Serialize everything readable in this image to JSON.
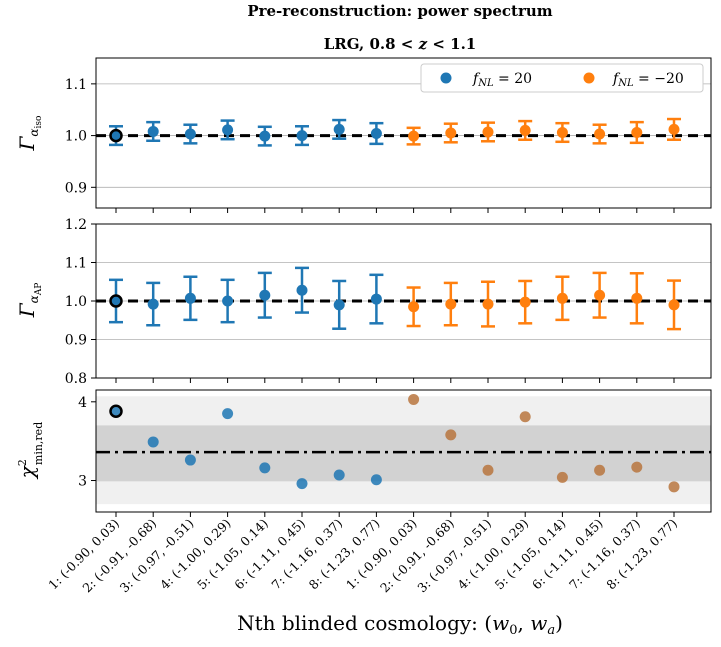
{
  "figure": {
    "suptitle": "Pre-reconstruction: power spectrum",
    "title": "LRG, 0.8 < z < 1.1",
    "xlabel": "Nth blinded cosmology: (w0, wa)",
    "colors": {
      "blue": "#1f77b4",
      "orange": "#ff7f0e",
      "ref_edge": "#000000"
    }
  },
  "chart_data": [
    {
      "type": "scatter",
      "name": "Gamma_alpha_iso",
      "ylabel": "Γ α_iso",
      "ylim": [
        0.86,
        1.15
      ],
      "yticks": [
        0.9,
        1.0,
        1.1
      ],
      "ytick_labels": [
        "0.9",
        "1.0",
        "1.1"
      ],
      "grid": "horizontal",
      "reference_line": 1.0,
      "legend": {
        "placement": "top-right",
        "entries": [
          "f_NL = 20",
          "f_NL = −20"
        ]
      },
      "series": [
        {
          "name": "f_NL = 20",
          "color": "#1f77b4",
          "x": [
            0,
            1,
            2,
            3,
            4,
            5,
            6,
            7
          ],
          "values": [
            1.0,
            1.008,
            1.003,
            1.011,
            0.999,
            1.0,
            1.012,
            1.004
          ],
          "err": [
            0.018,
            0.018,
            0.018,
            0.018,
            0.018,
            0.018,
            0.018,
            0.02
          ]
        },
        {
          "name": "f_NL = −20",
          "color": "#ff7f0e",
          "x": [
            8,
            9,
            10,
            11,
            12,
            13,
            14,
            15
          ],
          "values": [
            0.999,
            1.005,
            1.007,
            1.01,
            1.006,
            1.003,
            1.006,
            1.012
          ],
          "err": [
            0.016,
            0.018,
            0.018,
            0.018,
            0.018,
            0.018,
            0.02,
            0.02
          ]
        }
      ]
    },
    {
      "type": "scatter",
      "name": "Gamma_alpha_AP",
      "ylabel": "Γ α_AP",
      "ylim": [
        0.8,
        1.2
      ],
      "yticks": [
        0.8,
        0.9,
        1.0,
        1.1,
        1.2
      ],
      "ytick_labels": [
        "0.8",
        "0.9",
        "1.0",
        "1.1",
        "1.2"
      ],
      "grid": "horizontal",
      "reference_line": 1.0,
      "series": [
        {
          "name": "f_NL = 20",
          "color": "#1f77b4",
          "x": [
            0,
            1,
            2,
            3,
            4,
            5,
            6,
            7
          ],
          "values": [
            1.0,
            0.992,
            1.007,
            1.0,
            1.015,
            1.028,
            0.99,
            1.005
          ],
          "err": [
            0.055,
            0.055,
            0.056,
            0.055,
            0.058,
            0.058,
            0.062,
            0.063
          ]
        },
        {
          "name": "f_NL = −20",
          "color": "#ff7f0e",
          "x": [
            8,
            9,
            10,
            11,
            12,
            13,
            14,
            15
          ],
          "values": [
            0.985,
            0.992,
            0.992,
            0.997,
            1.007,
            1.015,
            1.007,
            0.99
          ],
          "err": [
            0.05,
            0.055,
            0.058,
            0.055,
            0.056,
            0.058,
            0.065,
            0.063
          ]
        }
      ]
    },
    {
      "type": "scatter",
      "name": "chi2_min_red",
      "ylabel": "χ²min,red",
      "ylim": [
        2.6,
        4.15
      ],
      "yticks": [
        3,
        4
      ],
      "ytick_labels": [
        "3",
        "4"
      ],
      "outer_band": [
        2.7,
        4.07
      ],
      "inner_band": [
        2.99,
        3.7
      ],
      "mean_line": 3.36,
      "series": [
        {
          "name": "f_NL = 20",
          "color": "#1f77b4",
          "alpha": 0.85,
          "x": [
            0,
            1,
            2,
            3,
            4,
            5,
            6,
            7
          ],
          "values": [
            3.88,
            3.49,
            3.26,
            3.85,
            3.16,
            2.96,
            3.07,
            3.01
          ]
        },
        {
          "name": "f_NL = −20",
          "color": "#b8753e",
          "alpha": 0.85,
          "x": [
            8,
            9,
            10,
            11,
            12,
            13,
            14,
            15
          ],
          "values": [
            4.03,
            3.58,
            3.13,
            3.81,
            3.04,
            3.13,
            3.17,
            2.92
          ]
        }
      ]
    }
  ],
  "x_categories": [
    "1: (-0.90, 0.03)",
    "2: (-0.91, -0.68)",
    "3: (-0.97, -0.51)",
    "4: (-1.00, 0.29)",
    "5: (-1.05, 0.14)",
    "6: (-1.11, 0.45)",
    "7: (-1.16, 0.37)",
    "8: (-1.23, 0.77)",
    "1: (-0.90, 0.03)",
    "2: (-0.91, -0.68)",
    "3: (-0.97, -0.51)",
    "4: (-1.00, 0.29)",
    "5: (-1.05, 0.14)",
    "6: (-1.11, 0.45)",
    "7: (-1.16, 0.37)",
    "8: (-1.23, 0.77)"
  ]
}
